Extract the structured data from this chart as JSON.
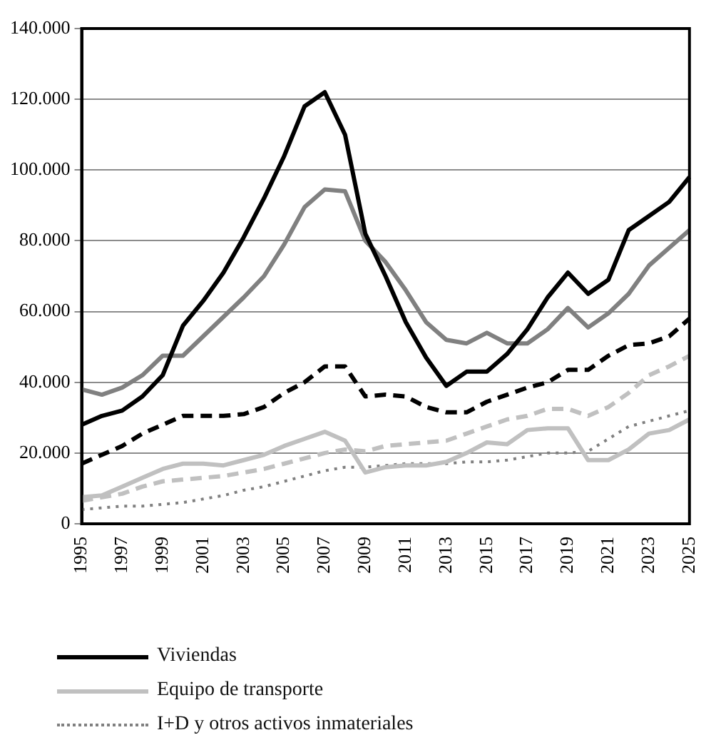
{
  "chart_data": {
    "type": "line",
    "categories": [
      "1995",
      null,
      "1997",
      null,
      "1999",
      null,
      "2001",
      null,
      "2003",
      null,
      "2005",
      null,
      "2007",
      null,
      "2009",
      null,
      "2011",
      null,
      "2013",
      null,
      "2015",
      null,
      "2017",
      null,
      "2019",
      null,
      "2021",
      null,
      "2023",
      null,
      "2025"
    ],
    "series": [
      {
        "name": "Viviendas",
        "color": "#000000",
        "line_style": "solid",
        "values": [
          28000,
          30500,
          32000,
          36000,
          42000,
          56000,
          63000,
          71000,
          81000,
          92000,
          104000,
          118000,
          122000,
          110000,
          82000,
          70000,
          57000,
          47000,
          39000,
          43000,
          43000,
          48000,
          55000,
          64000,
          71000,
          65000,
          69000,
          83000,
          87000,
          91000,
          98000
        ]
      },
      {
        "color": "#808080",
        "line_style": "solid",
        "values": [
          38000,
          36500,
          38500,
          42000,
          47500,
          47500,
          53000,
          58500,
          64000,
          70000,
          79000,
          89500,
          94500,
          94000,
          80000,
          74000,
          66000,
          57000,
          52000,
          51000,
          54000,
          51000,
          51000,
          55000,
          61000,
          55500,
          59500,
          65000,
          73000,
          78000,
          83000
        ]
      },
      {
        "color": "#000000",
        "line_style": "dashed",
        "values": [
          17000,
          19500,
          22000,
          25500,
          28000,
          30500,
          30500,
          30500,
          31000,
          33000,
          37000,
          40000,
          44500,
          44500,
          36000,
          36500,
          36000,
          33000,
          31500,
          31500,
          34500,
          36500,
          38500,
          40000,
          43500,
          43500,
          47500,
          50500,
          51000,
          53000,
          58000
        ]
      },
      {
        "name": "Equipo de transporte",
        "color": "#c0c0c0",
        "line_style": "solid",
        "values": [
          7500,
          8000,
          10500,
          13000,
          15500,
          17000,
          17000,
          16500,
          18000,
          19500,
          22000,
          24000,
          26000,
          23500,
          14500,
          16000,
          16500,
          16500,
          17500,
          20000,
          23000,
          22500,
          26500,
          27000,
          27000,
          18000,
          18000,
          21000,
          25500,
          26500,
          29500
        ]
      },
      {
        "color": "#c0c0c0",
        "line_style": "dashed",
        "values": [
          6500,
          7500,
          8500,
          10500,
          12000,
          12500,
          13000,
          13500,
          14500,
          15500,
          17000,
          18500,
          20000,
          21000,
          20500,
          22000,
          22500,
          23000,
          23500,
          25500,
          27500,
          29500,
          30500,
          32500,
          32500,
          30500,
          33000,
          37000,
          42000,
          44500,
          47500
        ]
      },
      {
        "name": "I+D y otros activos inmateriales",
        "color": "#808080",
        "line_style": "dotted",
        "values": [
          4000,
          4500,
          5000,
          5000,
          5500,
          6000,
          7000,
          8000,
          9500,
          10500,
          12000,
          13500,
          15000,
          16000,
          16000,
          16500,
          17000,
          17000,
          17000,
          17500,
          17500,
          18000,
          19000,
          20000,
          20000,
          20500,
          24000,
          27500,
          29000,
          30500,
          32000
        ]
      }
    ],
    "ylim": [
      0,
      140000
    ],
    "yticks": [
      0,
      {
        "value": 20000,
        "label": "20.000"
      },
      {
        "value": 40000,
        "label": "40.000"
      },
      {
        "value": 60000,
        "label": "60.000"
      },
      {
        "value": 80000,
        "label": "80.000"
      },
      {
        "value": 100000,
        "label": "100.000"
      },
      {
        "value": 120000,
        "label": "120.000"
      },
      {
        "value": 140000,
        "label": "140.000"
      }
    ],
    "grid": "y",
    "legend": "bottom",
    "marker": "none"
  }
}
